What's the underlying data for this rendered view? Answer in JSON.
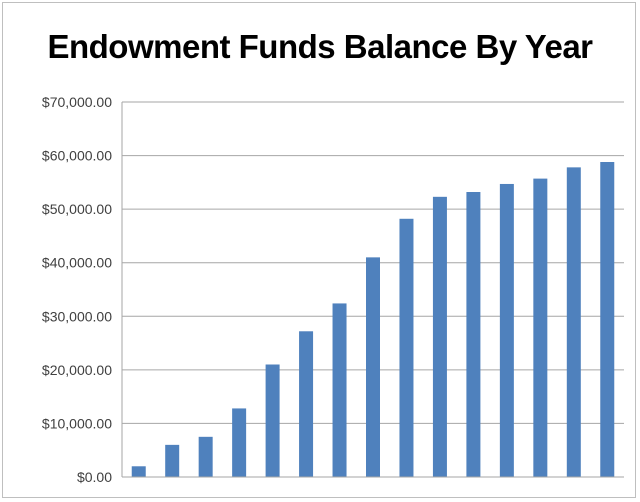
{
  "chart_data": {
    "type": "bar",
    "title": "Endowment Funds Balance By Year",
    "xlabel": "",
    "ylabel": "",
    "ylim": [
      0,
      70000
    ],
    "y_ticks": [
      0,
      10000,
      20000,
      30000,
      40000,
      50000,
      60000,
      70000
    ],
    "y_tick_labels": [
      "$0.00",
      "$10,000.00",
      "$20,000.00",
      "$30,000.00",
      "$40,000.00",
      "$50,000.00",
      "$60,000.00",
      "$70,000.00"
    ],
    "grid": true,
    "legend": "none",
    "values": [
      2000,
      6000,
      7500,
      12800,
      21000,
      27200,
      32400,
      41000,
      48200,
      52300,
      53200,
      54700,
      55700,
      57800,
      58800
    ],
    "bar_color": "#4f81bd",
    "gridline_color": "#a6a6a6"
  }
}
